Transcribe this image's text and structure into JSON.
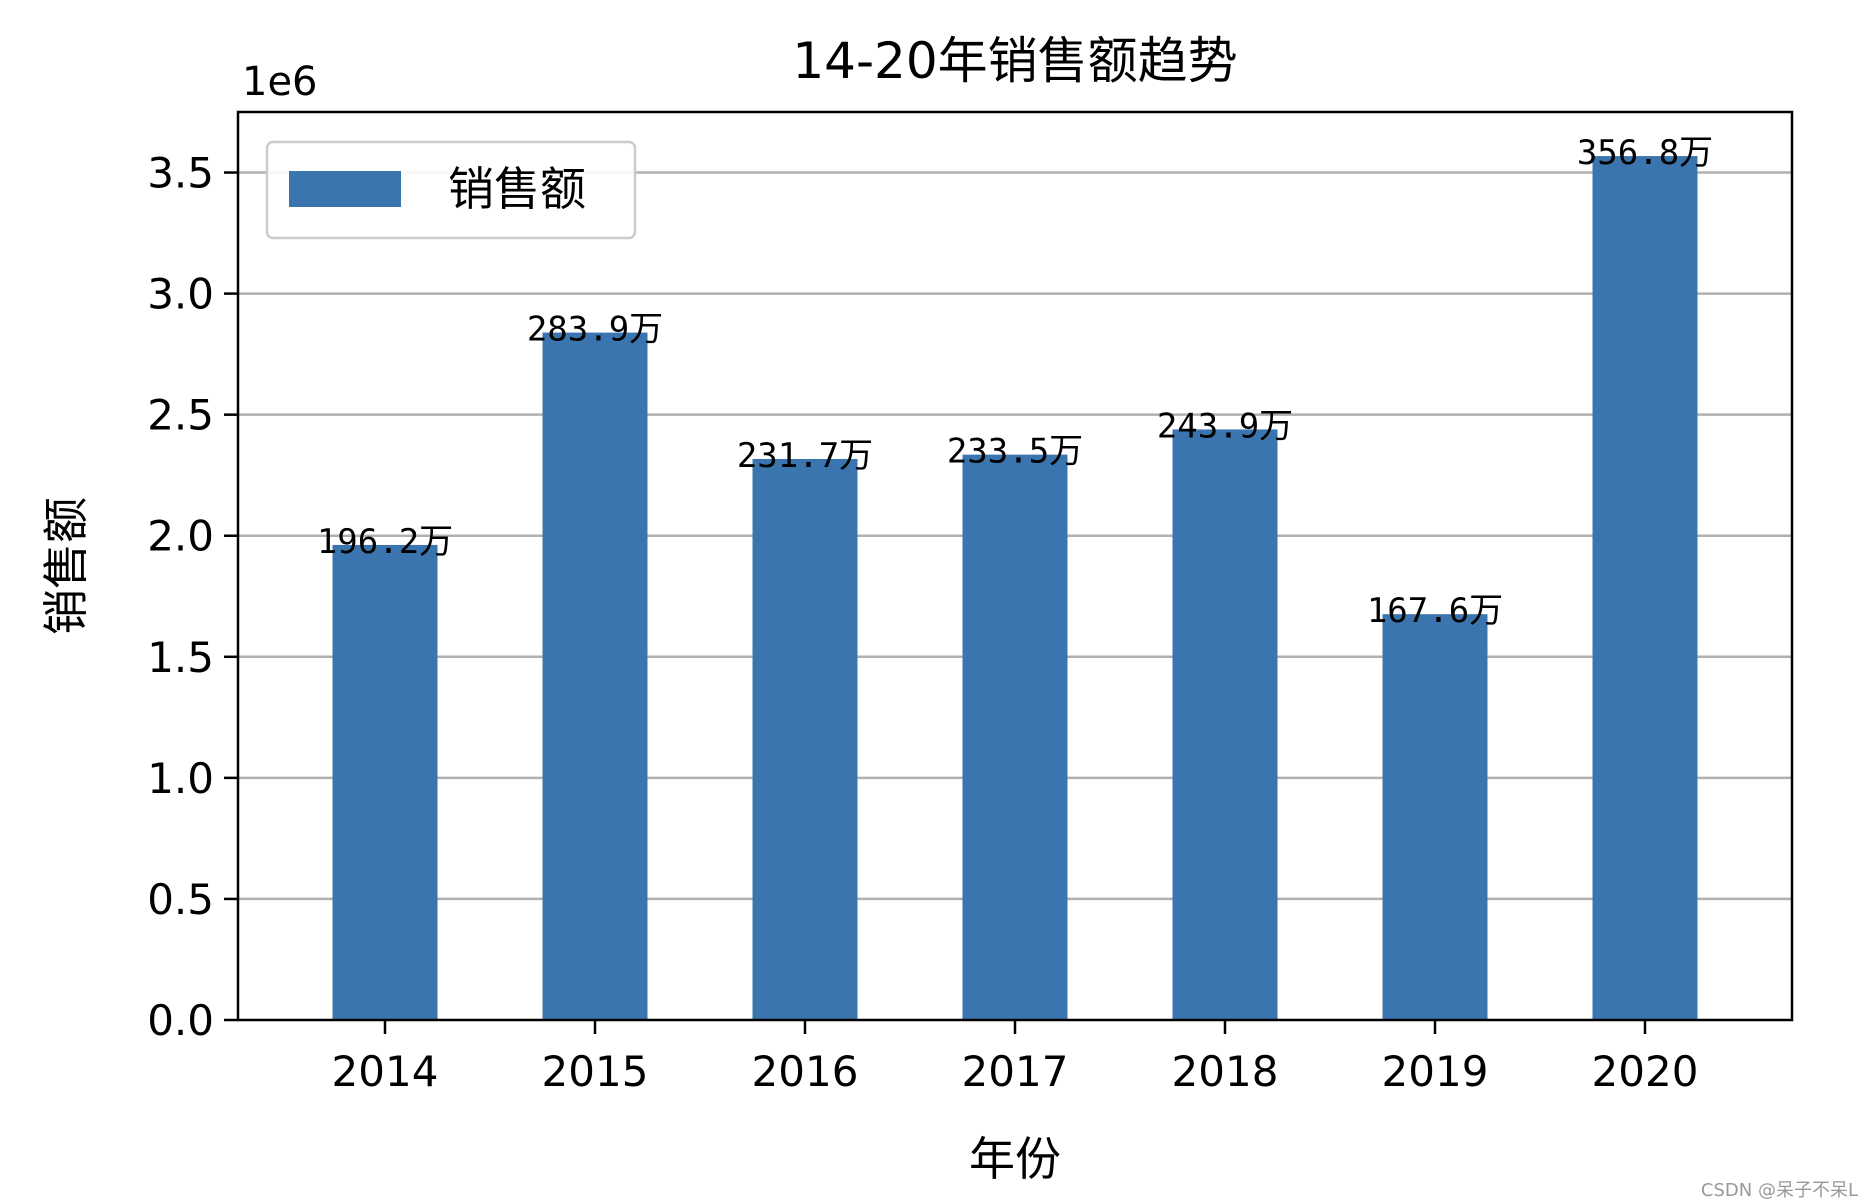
{
  "chart_data": {
    "type": "bar",
    "title": "14-20年销售额趋势",
    "xlabel": "年份",
    "ylabel": "销售额",
    "y_offset_label": "1e6",
    "categories": [
      "2014",
      "2015",
      "2016",
      "2017",
      "2018",
      "2019",
      "2020"
    ],
    "series": [
      {
        "name": "销售额",
        "values": [
          1962000,
          2839000,
          2317000,
          2335000,
          2439000,
          1676000,
          3568000
        ],
        "color": "#3b75af"
      }
    ],
    "data_labels": [
      "196.2万",
      "283.9万",
      "231.7万",
      "233.5万",
      "243.9万",
      "167.6万",
      "356.8万"
    ],
    "ylim": [
      0,
      3750000
    ],
    "yticks": [
      0,
      500000,
      1000000,
      1500000,
      2000000,
      2500000,
      3000000,
      3500000
    ],
    "ytick_labels": [
      "0.0",
      "0.5",
      "1.0",
      "1.5",
      "2.0",
      "2.5",
      "3.0",
      "3.5"
    ],
    "grid": "y-axis",
    "legend_position": "top-left"
  },
  "watermark": "CSDN @呆子不呆L"
}
